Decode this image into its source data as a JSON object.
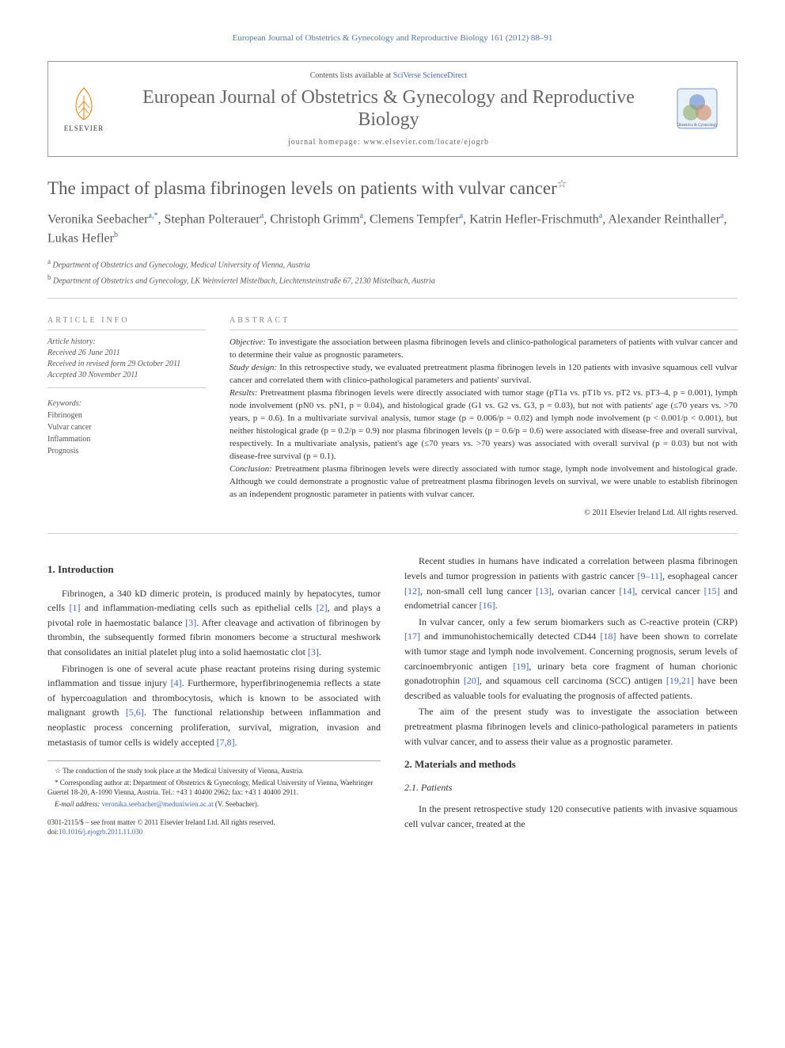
{
  "running_header": "European Journal of Obstetrics & Gynecology and Reproductive Biology 161 (2012) 88–91",
  "journal_box": {
    "contents_prefix": "Contents lists available at ",
    "contents_link": "SciVerse ScienceDirect",
    "journal_title": "European Journal of Obstetrics & Gynecology and Reproductive Biology",
    "homepage_label": "journal homepage: www.elsevier.com/locate/ejogrb",
    "elsevier_label": "ELSEVIER"
  },
  "article": {
    "title": "The impact of plasma fibrinogen levels on patients with vulvar cancer",
    "title_star": "☆",
    "authors_html": "Veronika Seebacher|a,*|, Stephan Polterauer|a|, Christoph Grimm|a|, Clemens Tempfer|a|, Katrin Hefler-Frischmuth|a|, Alexander Reinthaller|a|, Lukas Hefler|b|",
    "affiliations": [
      {
        "sup": "a",
        "text": "Department of Obstetrics and Gynecology, Medical University of Vienna, Austria"
      },
      {
        "sup": "b",
        "text": "Department of Obstetrics and Gynecology, LK Weinviertel Mistelbach, Liechtensteinstraße 67, 2130 Mistelbach, Austria"
      }
    ]
  },
  "article_info": {
    "heading": "ARTICLE INFO",
    "history_title": "Article history:",
    "received": "Received 26 June 2011",
    "revised": "Received in revised form 29 October 2011",
    "accepted": "Accepted 30 November 2011",
    "keywords_title": "Keywords:",
    "keywords": [
      "Fibrinogen",
      "Vulvar cancer",
      "Inflammation",
      "Prognosis"
    ]
  },
  "abstract": {
    "heading": "ABSTRACT",
    "objective_label": "Objective:",
    "objective": "To investigate the association between plasma fibrinogen levels and clinico-pathological parameters of patients with vulvar cancer and to determine their value as prognostic parameters.",
    "design_label": "Study design:",
    "design": "In this retrospective study, we evaluated pretreatment plasma fibrinogen levels in 120 patients with invasive squamous cell vulvar cancer and correlated them with clinico-pathological parameters and patients' survival.",
    "results_label": "Results:",
    "results": "Pretreatment plasma fibrinogen levels were directly associated with tumor stage (pT1a vs. pT1b vs. pT2 vs. pT3–4, p = 0.001), lymph node involvement (pN0 vs. pN1, p = 0.04), and histological grade (G1 vs. G2 vs. G3, p = 0.03), but not with patients' age (≤70 years vs. >70 years, p = 0.6). In a multivariate survival analysis, tumor stage (p = 0.006/p = 0.02) and lymph node involvement (p < 0.001/p < 0.001), but neither histological grade (p = 0.2/p = 0.9) nor plasma fibrinogen levels (p = 0.6/p = 0.6) were associated with disease-free and overall survival, respectively. In a multivariate analysis, patient's age (≤70 years vs. >70 years) was associated with overall survival (p = 0.03) but not with disease-free survival (p = 0.1).",
    "conclusion_label": "Conclusion:",
    "conclusion": "Pretreatment plasma fibrinogen levels were directly associated with tumor stage, lymph node involvement and histological grade. Although we could demonstrate a prognostic value of pretreatment plasma fibrinogen levels on survival, we were unable to establish fibrinogen as an independent prognostic parameter in patients with vulvar cancer.",
    "copyright": "© 2011 Elsevier Ireland Ltd. All rights reserved."
  },
  "body": {
    "intro_heading": "1. Introduction",
    "p1": "Fibrinogen, a 340 kD dimeric protein, is produced mainly by hepatocytes, tumor cells [1] and inflammation-mediating cells such as epithelial cells [2], and plays a pivotal role in haemostatic balance [3]. After cleavage and activation of fibrinogen by thrombin, the subsequently formed fibrin monomers become a structural meshwork that consolidates an initial platelet plug into a solid haemostatic clot [3].",
    "p2": "Fibrinogen is one of several acute phase reactant proteins rising during systemic inflammation and tissue injury [4]. Furthermore, hyperfibrinogenemia reflects a state of hypercoagulation and thrombocytosis, which is known to be associated with malignant growth [5,6]. The functional relationship between inflammation and neoplastic process concerning proliferation, survival, migration, invasion and metastasis of tumor cells is widely accepted [7,8].",
    "p3": "Recent studies in humans have indicated a correlation between plasma fibrinogen levels and tumor progression in patients with gastric cancer [9–11], esophageal cancer [12], non-small cell lung cancer [13], ovarian cancer [14], cervical cancer [15] and endometrial cancer [16].",
    "p4": "In vulvar cancer, only a few serum biomarkers such as C-reactive protein (CRP) [17] and immunohistochemically detected CD44 [18] have been shown to correlate with tumor stage and lymph node involvement. Concerning prognosis, serum levels of carcinoembryonic antigen [19], urinary beta core fragment of human chorionic gonadotrophin [20], and squamous cell carcinoma (SCC) antigen [19,21] have been described as valuable tools for evaluating the prognosis of affected patients.",
    "p5": "The aim of the present study was to investigate the association between pretreatment plasma fibrinogen levels and clinico-pathological parameters in patients with vulvar cancer, and to assess their value as a prognostic parameter.",
    "methods_heading": "2. Materials and methods",
    "patients_heading": "2.1. Patients",
    "p6": "In the present retrospective study 120 consecutive patients with invasive squamous cell vulvar cancer, treated at the"
  },
  "footnotes": {
    "star": "☆ The conduction of the study took place at the Medical University of Vienna, Austria.",
    "corresp": "* Corresponding author at: Department of Obstetrics & Gynecology, Medical University of Vienna, Waehringer Guertel 18-20, A-1090 Vienna, Austria. Tel.: +43 1 40400 2962; fax: +43 1 40400 2911.",
    "email_label": "E-mail address:",
    "email": "veronika.seebacher@meduniwien.ac.at",
    "email_suffix": "(V. Seebacher)."
  },
  "footer": {
    "issn_line": "0301-2115/$ – see front matter © 2011 Elsevier Ireland Ltd. All rights reserved.",
    "doi_prefix": "doi:",
    "doi": "10.1016/j.ejogrb.2011.11.030"
  },
  "colors": {
    "link_color": "#4466bb",
    "heading_gray": "#888888",
    "rule_gray": "#cccccc",
    "elsevier_orange": "#ff7700"
  }
}
